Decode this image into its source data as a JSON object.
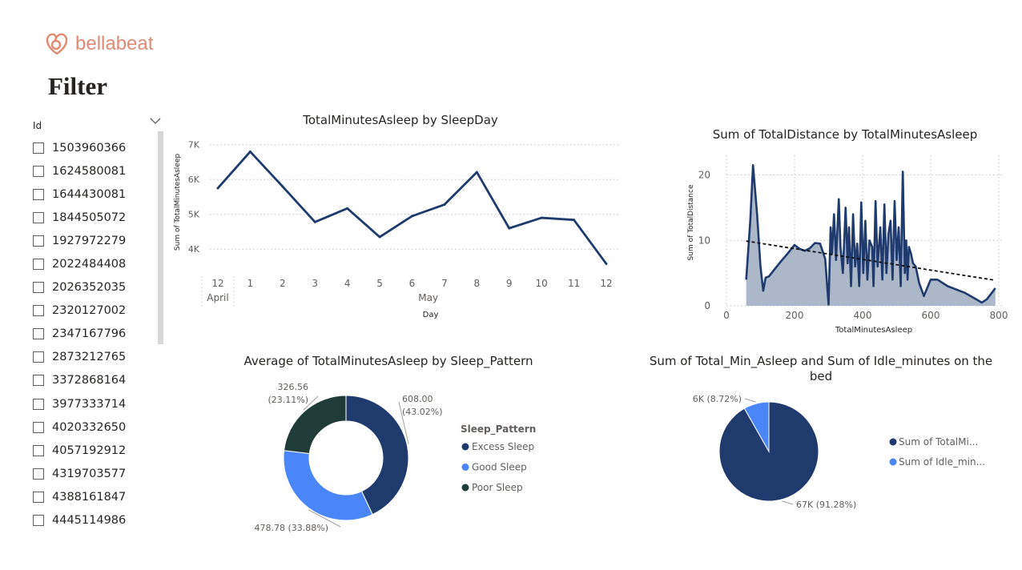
{
  "brand": {
    "name": "bellabeat",
    "color": "#e08a73"
  },
  "filter": {
    "title": "Filter",
    "slicer_label": "Id",
    "items": [
      "1503960366",
      "1624580081",
      "1644430081",
      "1844505072",
      "1927972279",
      "2022484408",
      "2026352035",
      "2320127002",
      "2347167796",
      "2873212765",
      "3372868164",
      "3977333714",
      "4020332650",
      "4057192912",
      "4319703577",
      "4388161847",
      "4445114986"
    ]
  },
  "colors": {
    "navy": "#1f3b6e",
    "blue": "#4a86f7",
    "dark_green": "#203c39",
    "area_fill": "#a3afc3",
    "grid": "#c8c6c4",
    "text": "#252423",
    "axis_text": "#605e5c"
  },
  "chart_data": [
    {
      "type": "line",
      "title": "TotalMinutesAsleep by SleepDay",
      "xlabel": "Day",
      "ylabel": "Sum of TotalMinutesAsleep",
      "x": [
        "12",
        "1",
        "2",
        "3",
        "4",
        "5",
        "6",
        "7",
        "8",
        "9",
        "10",
        "11",
        "12"
      ],
      "x_groups": [
        {
          "label": "April",
          "span": [
            0,
            0
          ]
        },
        {
          "label": "May",
          "span": [
            1,
            12
          ]
        }
      ],
      "values": [
        5750,
        6800,
        5800,
        4780,
        5170,
        4350,
        4950,
        5280,
        6210,
        4600,
        4900,
        4840,
        3580
      ],
      "yticks": [
        4000,
        5000,
        6000,
        7000
      ],
      "ytick_labels": [
        "4K",
        "5K",
        "6K",
        "7K"
      ],
      "ylim": [
        3500,
        7200
      ],
      "grid": true,
      "color": "#1f3b6e"
    },
    {
      "type": "area",
      "title": "Sum of TotalDistance by TotalMinutesAsleep",
      "xlabel": "TotalMinutesAsleep",
      "ylabel": "Sum of TotalDistance",
      "xticks": [
        0,
        200,
        400,
        600,
        800
      ],
      "yticks": [
        0,
        10,
        20
      ],
      "xlim": [
        0,
        800
      ],
      "ylim": [
        0,
        23
      ],
      "x": [
        58,
        70,
        78,
        90,
        100,
        108,
        115,
        125,
        140,
        160,
        180,
        200,
        215,
        230,
        245,
        260,
        275,
        290,
        300,
        306,
        310,
        316,
        322,
        330,
        335,
        342,
        350,
        356,
        360,
        366,
        372,
        378,
        384,
        390,
        396,
        402,
        408,
        414,
        420,
        428,
        432,
        438,
        444,
        452,
        458,
        464,
        470,
        476,
        482,
        488,
        494,
        500,
        506,
        512,
        518,
        524,
        528,
        532,
        536,
        542,
        548,
        556,
        566,
        580,
        600,
        620,
        650,
        700,
        750,
        765,
        790
      ],
      "values": [
        4,
        13,
        21.5,
        14,
        6,
        2.3,
        4.3,
        4.5,
        5.5,
        6.8,
        8,
        9.3,
        8.7,
        8.4,
        8.8,
        9.6,
        9.5,
        7.2,
        0.2,
        12,
        8,
        14,
        7,
        16.3,
        9,
        5,
        15,
        6.5,
        12,
        3,
        14,
        6,
        9.5,
        3,
        15.8,
        5,
        13,
        4,
        10,
        9,
        3,
        16,
        6,
        12,
        4,
        15.5,
        5,
        11,
        13,
        4,
        16,
        7,
        12,
        3,
        20.5,
        5,
        10,
        4,
        9,
        8,
        6.5,
        6,
        3.5,
        1.5,
        4,
        4,
        3,
        2,
        0.5,
        1,
        2.7
      ],
      "trend": [
        [
          58,
          9.9
        ],
        [
          790,
          3.9
        ]
      ],
      "grid": true,
      "color": "#1f3b6e",
      "fill": "#a3afc3"
    },
    {
      "type": "pie",
      "variant": "donut",
      "title": "Average of TotalMinutesAsleep by Sleep_Pattern",
      "legend_title": "Sleep_Pattern",
      "legend_position": "right",
      "labels": [
        "Excess Sleep",
        "Good Sleep",
        "Poor Sleep"
      ],
      "values": [
        608.0,
        478.78,
        326.56
      ],
      "percents": [
        "43.02%",
        "33.88%",
        "23.11%"
      ],
      "data_labels": [
        "608.00",
        "478.78 (33.88%)",
        "326.56"
      ],
      "colors": [
        "#1f3b6e",
        "#4a86f7",
        "#203c39"
      ]
    },
    {
      "type": "pie",
      "title": "Sum of Total_Min_Asleep and Sum of Idle_minutes on the bed",
      "legend_position": "right",
      "labels": [
        "Sum of TotalMi...",
        "Sum of Idle_min..."
      ],
      "values": [
        67,
        6
      ],
      "percents": [
        "91.28%",
        "8.72%"
      ],
      "data_labels": [
        "67K (91.28%)",
        "6K (8.72%)"
      ],
      "colors": [
        "#1f3b6e",
        "#4a86f7"
      ]
    }
  ]
}
